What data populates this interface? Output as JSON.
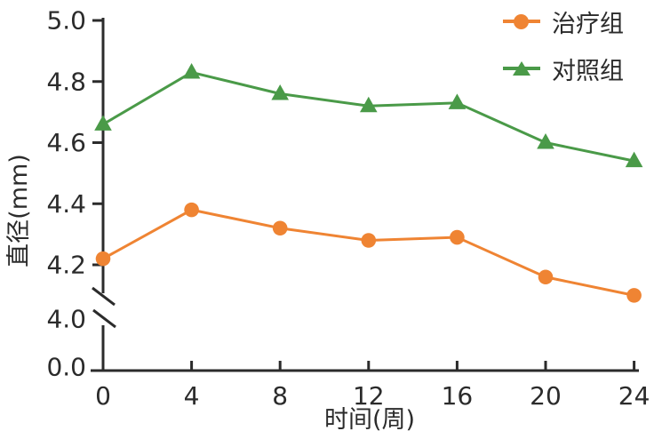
{
  "figure": {
    "background": "#ffffff",
    "axis_color": "#2b2b2b",
    "text_color": "#2b2b2b"
  },
  "chart_data": {
    "type": "line",
    "title": "",
    "xlabel": "时间(周)",
    "ylabel": "直径(mm)",
    "x": [
      0,
      4,
      8,
      12,
      16,
      20,
      24
    ],
    "x_tick_labels": [
      "0",
      "4",
      "8",
      "12",
      "16",
      "20",
      "24"
    ],
    "y_ticks": [
      {
        "label": "5.0",
        "value": 5.0
      },
      {
        "label": "4.8",
        "value": 4.8
      },
      {
        "label": "4.6",
        "value": 4.6
      },
      {
        "label": "4.4",
        "value": 4.4
      },
      {
        "label": "4.2",
        "value": 4.2
      },
      {
        "label": "4.0",
        "below_break": true
      },
      {
        "label": "0.0",
        "at_origin": true
      }
    ],
    "ylim_display": [
      4.0,
      5.0
    ],
    "axis_break": true,
    "grid": false,
    "legend_position": "top-right",
    "series": [
      {
        "name": "治疗组",
        "marker": "circle",
        "color": "#ef8433",
        "values": [
          4.22,
          4.38,
          4.32,
          4.28,
          4.29,
          4.16,
          4.1
        ]
      },
      {
        "name": "对照组",
        "marker": "triangle",
        "color": "#4a9a48",
        "values": [
          4.66,
          4.83,
          4.76,
          4.72,
          4.73,
          4.6,
          4.54
        ]
      }
    ]
  }
}
